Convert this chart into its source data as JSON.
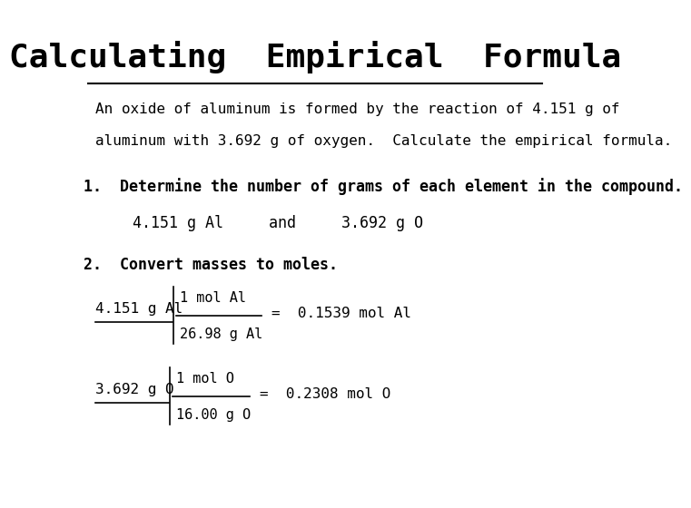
{
  "title": "Calculating  Empirical  Formula",
  "bg_color": "#ffffff",
  "text_color": "#000000",
  "intro_line1": "An oxide of aluminum is formed by the reaction of 4.151 g of",
  "intro_line2": "aluminum with 3.692 g of oxygen.  Calculate the empirical formula.",
  "step1_heading": "1.  Determine the number of grams of each element in the compound.",
  "step1_values": "4.151 g Al     and     3.692 g O",
  "step2_heading": "2.  Convert masses to moles.",
  "al_left": "4.151 g Al",
  "al_num": "1 mol Al",
  "al_den": "26.98 g Al",
  "al_result": "=  0.1539 mol Al",
  "o_left": "3.692 g O",
  "o_num": "1 mol O",
  "o_den": "16.00 g O",
  "o_result": "=  0.2308 mol O"
}
